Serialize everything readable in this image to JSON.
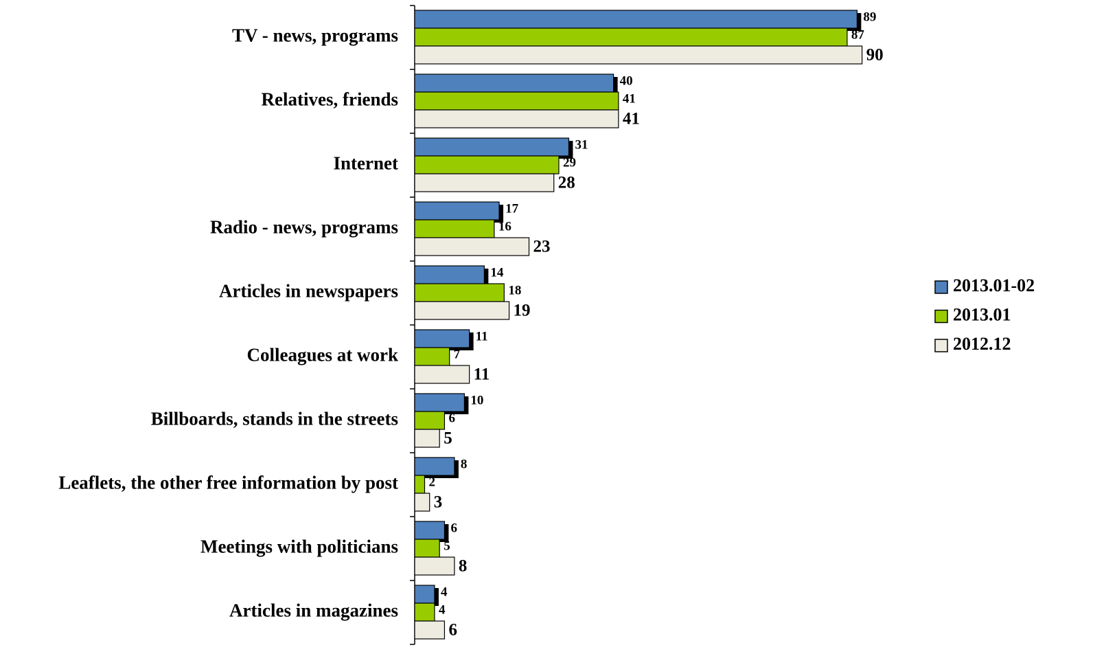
{
  "chart_data": {
    "type": "barh",
    "categories": [
      "TV - news, programs",
      "Relatives, friends",
      "Internet",
      "Radio - news, programs",
      "Articles in newspapers",
      "Colleagues at work",
      "Billboards, stands in the streets",
      "Leaflets, the other free information by post",
      "Meetings with politicians",
      "Articles in magazines"
    ],
    "series": [
      {
        "name": "2013.01-02",
        "color": "#4f81bd",
        "shadow": true,
        "values": [
          89,
          40,
          31,
          17,
          14,
          11,
          10,
          8,
          6,
          4
        ]
      },
      {
        "name": "2013.01",
        "color": "#99cc00",
        "values": [
          87,
          41,
          29,
          16,
          18,
          7,
          6,
          2,
          5,
          4
        ]
      },
      {
        "name": "2012.12",
        "color": "#eeece1",
        "values": [
          90,
          41,
          28,
          23,
          19,
          11,
          5,
          3,
          8,
          6
        ]
      }
    ],
    "xlim": [
      0,
      100
    ],
    "legend": "right"
  }
}
